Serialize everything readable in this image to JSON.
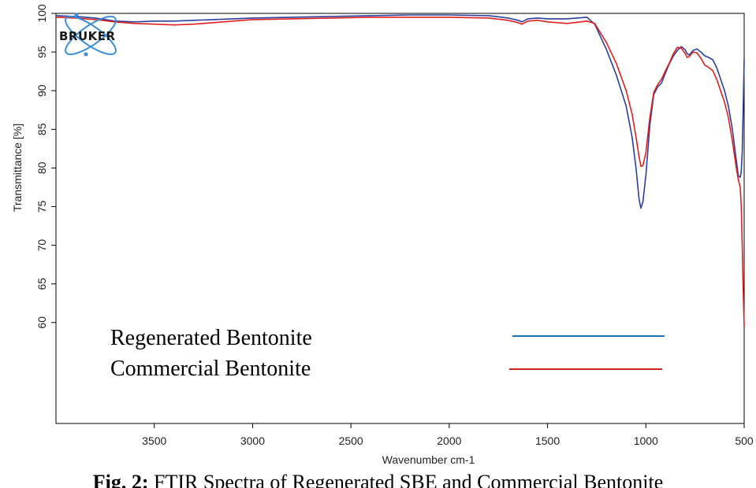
{
  "chart_data": {
    "type": "line",
    "xlabel": "Wavenumber cm-1",
    "ylabel": "Transmittance [%]",
    "xlim": [
      4000,
      500
    ],
    "ylim": [
      53,
      100
    ],
    "x_ticks": [
      3500,
      3000,
      2500,
      2000,
      1500,
      1000,
      500
    ],
    "y_ticks": [
      60,
      65,
      70,
      75,
      80,
      85,
      90,
      95,
      100
    ],
    "grid": false,
    "legend_position": "bottom-left",
    "series": [
      {
        "name": "Regenerated Bentonite",
        "color": "#2b3f9e",
        "legend_color": "#1f6fb4",
        "x": [
          4000,
          3900,
          3800,
          3700,
          3600,
          3500,
          3400,
          3300,
          3200,
          3100,
          3000,
          2800,
          2600,
          2400,
          2200,
          2000,
          1800,
          1700,
          1650,
          1630,
          1600,
          1550,
          1500,
          1400,
          1300,
          1260,
          1200,
          1150,
          1100,
          1070,
          1050,
          1035,
          1025,
          1015,
          1000,
          980,
          960,
          940,
          920,
          900,
          880,
          860,
          840,
          820,
          800,
          790,
          780,
          760,
          740,
          720,
          700,
          680,
          660,
          640,
          620,
          600,
          580,
          560,
          540,
          530,
          520,
          515,
          510,
          505,
          500
        ],
        "y": [
          99.7,
          99.6,
          99.4,
          99.0,
          98.9,
          99.0,
          99.0,
          99.1,
          99.2,
          99.3,
          99.4,
          99.5,
          99.6,
          99.7,
          99.8,
          99.8,
          99.7,
          99.4,
          99.1,
          98.9,
          99.3,
          99.4,
          99.3,
          99.3,
          99.5,
          98.6,
          95.3,
          92.0,
          88.0,
          84.0,
          80.0,
          76.0,
          74.8,
          75.6,
          79.0,
          85.5,
          89.5,
          90.5,
          91.0,
          92.3,
          93.5,
          94.5,
          95.2,
          95.7,
          95.3,
          94.8,
          94.6,
          95.2,
          95.4,
          95.0,
          94.5,
          94.3,
          94.0,
          93.0,
          91.5,
          90.0,
          88.0,
          85.0,
          81.0,
          79.0,
          78.8,
          79.5,
          82.0,
          88.0,
          94.0
        ]
      },
      {
        "name": "Commercial Bentonite",
        "color": "#e02020",
        "legend_color": "#cc2222",
        "x": [
          4000,
          3900,
          3800,
          3700,
          3600,
          3500,
          3400,
          3300,
          3200,
          3100,
          3000,
          2800,
          2600,
          2400,
          2200,
          2000,
          1800,
          1700,
          1650,
          1630,
          1600,
          1550,
          1500,
          1400,
          1300,
          1260,
          1200,
          1150,
          1100,
          1070,
          1050,
          1035,
          1025,
          1015,
          1000,
          980,
          960,
          940,
          920,
          900,
          880,
          860,
          840,
          820,
          800,
          790,
          780,
          760,
          740,
          720,
          700,
          680,
          660,
          640,
          620,
          600,
          580,
          560,
          540,
          530,
          520,
          515,
          510,
          505,
          500
        ],
        "y": [
          99.5,
          99.4,
          99.2,
          98.9,
          98.7,
          98.6,
          98.5,
          98.6,
          98.8,
          99.0,
          99.2,
          99.3,
          99.4,
          99.5,
          99.5,
          99.5,
          99.4,
          99.1,
          98.8,
          98.6,
          99.0,
          99.1,
          98.9,
          98.7,
          99.0,
          98.7,
          96.2,
          93.5,
          90.0,
          87.0,
          84.0,
          81.5,
          80.2,
          80.3,
          82.0,
          86.5,
          89.8,
          90.8,
          91.5,
          92.6,
          93.6,
          94.8,
          95.6,
          95.5,
          94.8,
          94.3,
          94.4,
          95.0,
          94.9,
          94.2,
          93.3,
          93.0,
          92.6,
          91.5,
          90.0,
          88.5,
          86.5,
          83.5,
          80.0,
          78.5,
          77.5,
          75.0,
          70.0,
          64.0,
          59.5
        ]
      }
    ]
  },
  "figure": {
    "logo_text": "BRUKER",
    "caption_label": "Fig. 2:",
    "caption_text": " FTIR Spectra of Regenerated SBE and Commercial Bentonite"
  }
}
